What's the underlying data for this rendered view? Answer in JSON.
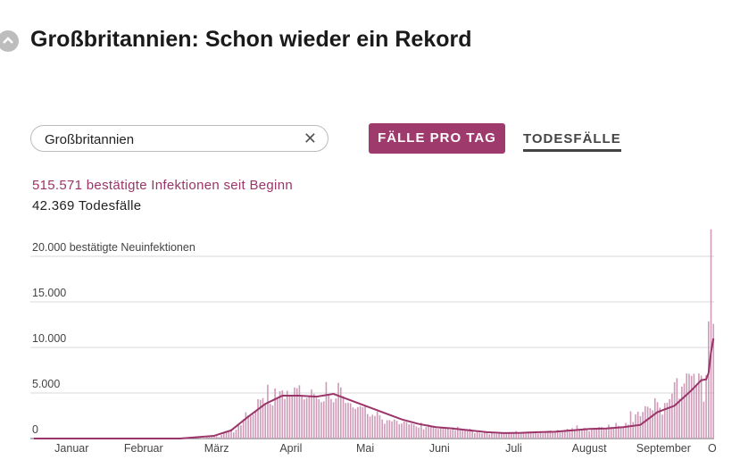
{
  "page": {
    "title": "Großbritannien: Schon wieder ein Rekord",
    "search": "Großbritannien",
    "tab_active": "FÄLLE PRO TAG",
    "tab_other": "TODESFÄLLE",
    "total_cases": "515.571 bestätigte Infektionen seit Beginn",
    "total_deaths": "42.369 Todesfälle"
  },
  "chart_data": {
    "type": "bar",
    "xlim": [
      0,
      280
    ],
    "ylim": [
      0,
      23000
    ],
    "grid": true,
    "yticks": [
      0,
      {
        "value": 5000,
        "label": "5.000"
      },
      {
        "value": 10000,
        "label": "10.000"
      },
      {
        "value": 15000,
        "label": "15.000"
      },
      {
        "value": 20000,
        "label": "20.000 bestätigte Neuinfektionen"
      }
    ],
    "xticks": [
      {
        "value": 15.5,
        "label": "Januar"
      },
      {
        "value": 45,
        "label": "Februar"
      },
      {
        "value": 75,
        "label": "März"
      },
      {
        "value": 105.5,
        "label": "April"
      },
      {
        "value": 136,
        "label": "Mai"
      },
      {
        "value": 166.5,
        "label": "Juni"
      },
      {
        "value": 197,
        "label": "Juli"
      },
      {
        "value": 228,
        "label": "August"
      },
      {
        "value": 258.5,
        "label": "September"
      },
      {
        "value": 278.5,
        "label": "O"
      }
    ],
    "series": [
      {
        "type": "bar",
        "color": "#cf9ab8",
        "x": [
          60,
          61,
          62,
          63,
          64,
          65,
          66,
          67,
          68,
          69,
          70,
          71,
          72,
          73,
          74,
          75,
          76,
          77,
          78,
          79,
          80,
          81,
          82,
          83,
          84,
          85,
          86,
          87,
          88,
          89,
          90,
          91,
          92,
          93,
          94,
          95,
          96,
          97,
          98,
          99,
          100,
          101,
          102,
          103,
          104,
          105,
          106,
          107,
          108,
          109,
          110,
          111,
          112,
          113,
          114,
          115,
          116,
          117,
          118,
          119,
          120,
          121,
          122,
          123,
          124,
          125,
          126,
          127,
          128,
          129,
          130,
          131,
          132,
          133,
          134,
          135,
          136,
          137,
          138,
          139,
          140,
          141,
          142,
          143,
          144,
          145,
          146,
          147,
          148,
          149,
          150,
          151,
          152,
          153,
          154,
          155,
          156,
          157,
          158,
          159,
          160,
          161,
          162,
          163,
          164,
          165,
          166,
          167,
          168,
          169,
          170,
          171,
          172,
          173,
          174,
          175,
          176,
          177,
          178,
          179,
          180,
          181,
          182,
          183,
          184,
          185,
          186,
          187,
          188,
          189,
          190,
          191,
          192,
          193,
          194,
          195,
          196,
          197,
          198,
          199,
          200,
          201,
          202,
          203,
          204,
          205,
          206,
          207,
          208,
          209,
          210,
          211,
          212,
          213,
          214,
          215,
          216,
          217,
          218,
          219,
          220,
          221,
          222,
          223,
          224,
          225,
          226,
          227,
          228,
          229,
          230,
          231,
          232,
          233,
          234,
          235,
          236,
          237,
          238,
          239,
          240,
          241,
          242,
          243,
          244,
          245,
          246,
          247,
          248,
          249,
          250,
          251,
          252,
          253,
          254,
          255,
          256,
          257,
          258,
          259,
          260,
          261,
          262,
          263,
          264,
          265,
          266,
          267,
          268,
          269,
          270,
          271,
          272,
          273,
          274,
          275,
          276,
          277,
          278,
          279
        ],
        "values": [
          12,
          4,
          36,
          30,
          40,
          47,
          46,
          56,
          67,
          46,
          65,
          134,
          207,
          342,
          342,
          251,
          152,
          407,
          676,
          643,
          714,
          1035,
          665,
          967,
          1427,
          1452,
          2129,
          2885,
          2546,
          2433,
          2619,
          3009,
          4324,
          4244,
          4450,
          3735,
          5903,
          3802,
          3634,
          5491,
          4344,
          5195,
          5288,
          4342,
          5252,
          4603,
          4617,
          5599,
          5525,
          5850,
          4676,
          4301,
          4451,
          4583,
          5386,
          4913,
          4463,
          4309,
          3996,
          4076,
          6201,
          4806,
          4339,
          3985,
          4406,
          6111,
          5614,
          4649,
          3896,
          3923,
          3877,
          3403,
          3242,
          3446,
          3560,
          3450,
          3534,
          2684,
          2412,
          2615,
          2472,
          2959,
          2553,
          2095,
          1625,
          2004,
          2013,
          1887,
          2095,
          1936,
          1570,
          1653,
          1871,
          1805,
          1557,
          1650,
          1557,
          1326,
          1205,
          1741,
          1003,
          1266,
          1541,
          1425,
          1346,
          1115,
          1056,
          1279,
          1218,
          1221,
          1205,
          958,
          1221,
          921,
          1295,
          1118,
          1006,
          901,
          814,
          1086,
          829,
          581,
          689,
          626,
          567,
          662,
          623,
          470,
          581,
          544,
          512,
          650,
          539,
          517,
          530,
          538,
          560,
          687,
          827,
          650,
          580,
          647,
          532,
          767,
          769,
          688,
          798,
          560,
          685,
          581,
          763,
          846,
          880,
          744,
          748,
          938,
          670,
          871,
          950,
          1062,
          758,
          1148,
          1009,
          1441,
          1062,
          1040,
          1182,
          1089,
          812,
          1089,
          1182,
          1033,
          1288,
          1276,
          1048,
          1041,
          1522,
          1276,
          1108,
          1715,
          1406,
          1295,
          1184,
          1715,
          1522,
          2988,
          1813,
          2659,
          2948,
          2460,
          2919,
          3539,
          3497,
          3330,
          3105,
          4422,
          3991,
          3395,
          2621,
          3899,
          3929,
          4322,
          4926,
          6178,
          6634,
          4368,
          5693,
          6042,
          7143,
          7108,
          6874,
          7108,
          5763,
          7143,
          6914,
          4044,
          6968,
          12872,
          22961,
          12594
        ]
      },
      {
        "type": "line",
        "color": "#9b3468",
        "x": [
          0,
          60,
          74,
          81,
          88,
          95,
          102,
          109,
          116,
          123,
          130,
          137,
          144,
          151,
          158,
          165,
          172,
          179,
          186,
          193,
          200,
          207,
          214,
          221,
          228,
          235,
          242,
          249,
          256,
          263,
          270,
          274,
          276,
          277,
          278,
          279
        ],
        "values": [
          0,
          0,
          300,
          900,
          2400,
          3800,
          4700,
          4700,
          4600,
          4900,
          4200,
          3500,
          2800,
          2100,
          1600,
          1250,
          1100,
          900,
          700,
          600,
          620,
          700,
          750,
          900,
          1050,
          1100,
          1250,
          1500,
          2900,
          3600,
          5300,
          6400,
          6500,
          7200,
          9500,
          11000
        ]
      }
    ]
  }
}
